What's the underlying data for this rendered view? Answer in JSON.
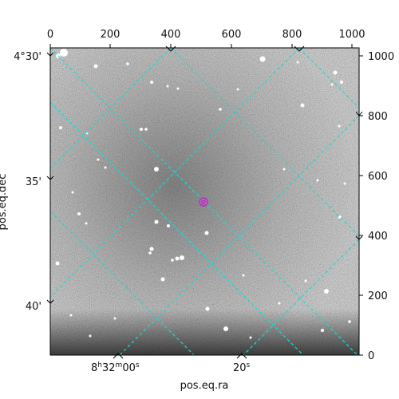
{
  "image": {
    "description_free": true
  },
  "axes": {
    "pixel_x_ticks": [
      "0",
      "200",
      "400",
      "600",
      "800",
      "1000"
    ],
    "pixel_y_ticks": [
      "0",
      "200",
      "400",
      "600",
      "800",
      "1000"
    ],
    "dec_ticks": {
      "top": {
        "deg": "4°30'"
      },
      "mid": "35'",
      "low": "40'"
    },
    "ra_ticks": {
      "first": {
        "h": "8",
        "hs": "h",
        "m": "32",
        "ms": "m",
        "s": "00",
        "ss": "s"
      },
      "second": {
        "s": "20",
        "ss": "s"
      }
    },
    "xlabel": "pos.eq.ra",
    "ylabel": "pos.eq.dec"
  },
  "colors": {
    "grid": "#1fd6d6",
    "marker": "#d020d0",
    "frame": "#000000"
  },
  "marker": {
    "shape": "circle"
  }
}
